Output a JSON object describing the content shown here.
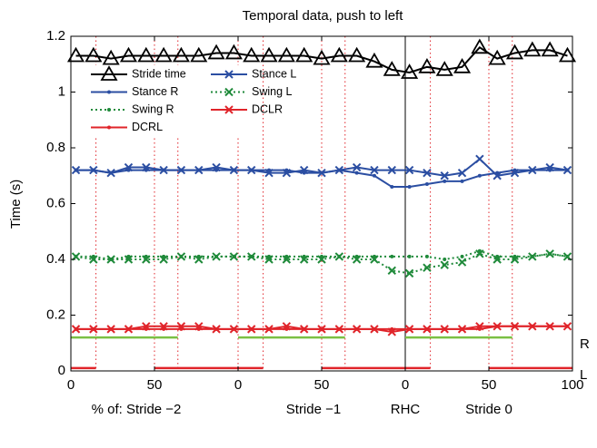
{
  "chart_data": {
    "type": "line",
    "title": "Temporal data, push to left",
    "y_label": "Time (s)",
    "x_labels": [
      "% of: Stride −2",
      "Stride −1",
      "Stride 0"
    ],
    "annotations": [
      {
        "text": "RHC",
        "x": 200
      }
    ],
    "xlim": [
      0,
      300
    ],
    "xticks": [
      0,
      50,
      {
        "value": 100,
        "label": "0"
      },
      {
        "value": 150,
        "label": "50"
      },
      {
        "value": 200,
        "label": "0"
      },
      {
        "value": 250,
        "label": "50"
      },
      {
        "value": 300,
        "label": "100"
      }
    ],
    "ylim": [
      0,
      1.2
    ],
    "yticks": [
      0,
      0.2,
      0.4,
      0.6,
      0.8,
      1,
      1.2
    ],
    "x": [
      3,
      13.5,
      24,
      34.5,
      45,
      55.5,
      66,
      76.5,
      87,
      97.5,
      108,
      118.5,
      129,
      139.5,
      150,
      160.5,
      171,
      181.5,
      192,
      202.5,
      213,
      223.5,
      234,
      244.5,
      255,
      265.5,
      276,
      286.5,
      297
    ],
    "series": [
      {
        "name": "Stride time",
        "color": "#000000",
        "marker": "triangle",
        "dash": "solid",
        "values": [
          1.13,
          1.13,
          1.12,
          1.13,
          1.13,
          1.13,
          1.13,
          1.13,
          1.14,
          1.14,
          1.13,
          1.13,
          1.13,
          1.13,
          1.12,
          1.13,
          1.13,
          1.11,
          1.08,
          1.07,
          1.09,
          1.08,
          1.09,
          1.16,
          1.12,
          1.14,
          1.15,
          1.15,
          1.13
        ]
      },
      {
        "name": "Stance R",
        "color": "#2b4ea2",
        "marker": "dot",
        "dash": "solid",
        "values": [
          0.72,
          0.72,
          0.71,
          0.72,
          0.72,
          0.72,
          0.72,
          0.72,
          0.72,
          0.72,
          0.72,
          0.72,
          0.72,
          0.71,
          0.71,
          0.72,
          0.71,
          0.7,
          0.66,
          0.66,
          0.67,
          0.68,
          0.68,
          0.7,
          0.71,
          0.72,
          0.72,
          0.72,
          0.72
        ]
      },
      {
        "name": "Swing R",
        "color": "#1f8a3a",
        "marker": "dot",
        "dash": "dotted",
        "values": [
          0.41,
          0.41,
          0.4,
          0.41,
          0.41,
          0.41,
          0.41,
          0.41,
          0.41,
          0.41,
          0.41,
          0.41,
          0.41,
          0.41,
          0.41,
          0.41,
          0.41,
          0.41,
          0.41,
          0.41,
          0.41,
          0.4,
          0.41,
          0.43,
          0.41,
          0.41,
          0.41,
          0.42,
          0.41
        ]
      },
      {
        "name": "DCRL",
        "color": "#e0242a",
        "marker": "dot",
        "dash": "solid",
        "values": [
          0.15,
          0.15,
          0.15,
          0.15,
          0.15,
          0.15,
          0.15,
          0.15,
          0.15,
          0.15,
          0.15,
          0.15,
          0.15,
          0.15,
          0.15,
          0.15,
          0.15,
          0.15,
          0.15,
          0.15,
          0.15,
          0.15,
          0.15,
          0.15,
          0.16,
          0.16,
          0.16,
          0.16,
          0.16
        ]
      },
      {
        "name": "Stance L",
        "color": "#2b4ea2",
        "marker": "x",
        "dash": "solid",
        "values": [
          0.72,
          0.72,
          0.71,
          0.73,
          0.73,
          0.72,
          0.72,
          0.72,
          0.73,
          0.72,
          0.72,
          0.71,
          0.71,
          0.72,
          0.71,
          0.72,
          0.73,
          0.72,
          0.72,
          0.72,
          0.71,
          0.7,
          0.71,
          0.76,
          0.7,
          0.71,
          0.72,
          0.73,
          0.72
        ]
      },
      {
        "name": "Swing L",
        "color": "#1f8a3a",
        "marker": "x",
        "dash": "dotted",
        "values": [
          0.41,
          0.4,
          0.4,
          0.4,
          0.4,
          0.4,
          0.41,
          0.4,
          0.41,
          0.41,
          0.41,
          0.4,
          0.4,
          0.4,
          0.4,
          0.41,
          0.4,
          0.4,
          0.36,
          0.35,
          0.37,
          0.38,
          0.39,
          0.42,
          0.4,
          0.4,
          0.41,
          0.42,
          0.41
        ]
      },
      {
        "name": "DCLR",
        "color": "#e0242a",
        "marker": "x",
        "dash": "solid",
        "values": [
          0.15,
          0.15,
          0.15,
          0.15,
          0.16,
          0.16,
          0.16,
          0.16,
          0.15,
          0.15,
          0.15,
          0.15,
          0.16,
          0.15,
          0.15,
          0.15,
          0.15,
          0.15,
          0.14,
          0.15,
          0.15,
          0.15,
          0.15,
          0.16,
          0.16,
          0.16,
          0.16,
          0.16,
          0.16
        ]
      }
    ],
    "phases": [
      {
        "label": "R",
        "y": 0.12,
        "color": "#7bc043",
        "segments": [
          [
            0,
            64
          ],
          [
            100,
            164
          ],
          [
            200,
            264
          ]
        ]
      },
      {
        "label": "L",
        "y": 0.01,
        "color": "#e0242a",
        "segments": [
          [
            0,
            15
          ],
          [
            50,
            115
          ],
          [
            150,
            215
          ],
          [
            250,
            300
          ]
        ]
      }
    ]
  }
}
